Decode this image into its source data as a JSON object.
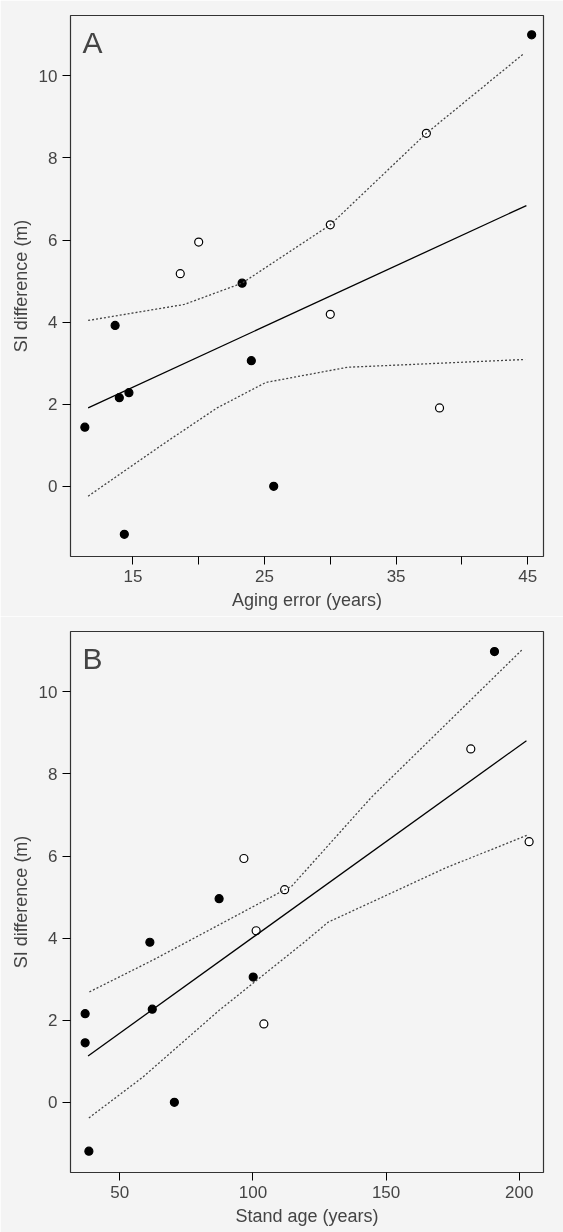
{
  "chart_data": [
    {
      "type": "scatter",
      "xlabel": "Aging error (years)",
      "ylabel": "SI difference (m)",
      "annotations": [
        "A"
      ],
      "xlim": [
        10.26,
        46.2
      ],
      "ylim": [
        -1.71,
        11.47
      ],
      "xticks": [
        15,
        {
          "value": 20,
          "label": null
        },
        25,
        {
          "value": 30,
          "label": null
        },
        35,
        {
          "value": 40,
          "label": null
        },
        45
      ],
      "yticks": [
        0,
        2,
        4,
        6,
        8,
        10
      ],
      "series": [
        {
          "marker": "circle",
          "color": "#000000",
          "x": [
            45.3,
            23.3,
            13.65,
            24.0,
            14.7,
            13.97,
            11.35,
            25.7,
            14.35
          ],
          "values": [
            11.0,
            4.95,
            3.92,
            3.06,
            2.28,
            2.16,
            1.44,
            0.0,
            -1.17
          ]
        },
        {
          "marker": "circle",
          "color": "#ffffff",
          "x": [
            37.3,
            30.0,
            30.0,
            20.0,
            18.6,
            38.3
          ],
          "values": [
            8.6,
            6.37,
            4.19,
            5.95,
            5.18,
            1.91
          ]
        },
        {
          "type": "line",
          "marker": "none",
          "line_style": "solid",
          "color": "#000000",
          "x": [
            11.6,
            44.9
          ],
          "values": [
            1.91,
            6.84
          ]
        },
        {
          "type": "line",
          "marker": "none",
          "line_style": "dotted",
          "color": "#444444",
          "x": [
            11.6,
            18.9,
            23.3,
            30.0,
            37.3,
            44.7
          ],
          "values": [
            4.04,
            4.43,
            4.95,
            6.37,
            8.6,
            10.54
          ]
        },
        {
          "type": "line",
          "marker": "none",
          "line_style": "dotted",
          "color": "#444444",
          "x": [
            11.6,
            17.4,
            21.4,
            25.1,
            31.3,
            44.8
          ],
          "values": [
            -0.24,
            1.05,
            1.91,
            2.53,
            2.9,
            3.09
          ]
        }
      ]
    },
    {
      "type": "scatter",
      "xlabel": "Stand age (years)",
      "ylabel": "SI difference (m)",
      "annotations": [
        "B"
      ],
      "xlim": [
        31.5,
        209.1
      ],
      "ylim": [
        -1.71,
        11.47
      ],
      "xticks": [
        50,
        100,
        150,
        200
      ],
      "yticks": [
        0,
        2,
        4,
        6,
        8,
        10
      ],
      "series": [
        {
          "marker": "circle",
          "color": "#000000",
          "x": [
            190.7,
            100.1,
            87.3,
            61.3,
            62.2,
            70.5,
            37.0,
            37.0,
            38.4
          ],
          "values": [
            10.98,
            3.05,
            4.96,
            3.9,
            2.27,
            0.0,
            2.16,
            1.45,
            -1.19
          ]
        },
        {
          "marker": "circle",
          "color": "#ffffff",
          "x": [
            203.7,
            181.8,
            111.9,
            96.6,
            101.2,
            104.1
          ],
          "values": [
            6.35,
            8.61,
            5.18,
            5.94,
            4.18,
            1.91
          ]
        },
        {
          "type": "line",
          "marker": "none",
          "line_style": "solid",
          "color": "#000000",
          "x": [
            38.1,
            202.7
          ],
          "values": [
            1.13,
            8.81
          ]
        },
        {
          "type": "line",
          "marker": "none",
          "line_style": "dotted",
          "color": "#444444",
          "x": [
            38.6,
            62.6,
            114.6,
            144.6,
            201.3
          ],
          "values": [
            2.69,
            3.47,
            5.27,
            7.44,
            11.04
          ]
        },
        {
          "type": "line",
          "marker": "none",
          "line_style": "dotted",
          "color": "#444444",
          "x": [
            38.4,
            58.6,
            87.3,
            118.7,
            128.3,
            172.0,
            203.4
          ],
          "values": [
            -0.38,
            0.61,
            2.24,
            3.87,
            4.39,
            5.7,
            6.52
          ]
        }
      ]
    }
  ]
}
